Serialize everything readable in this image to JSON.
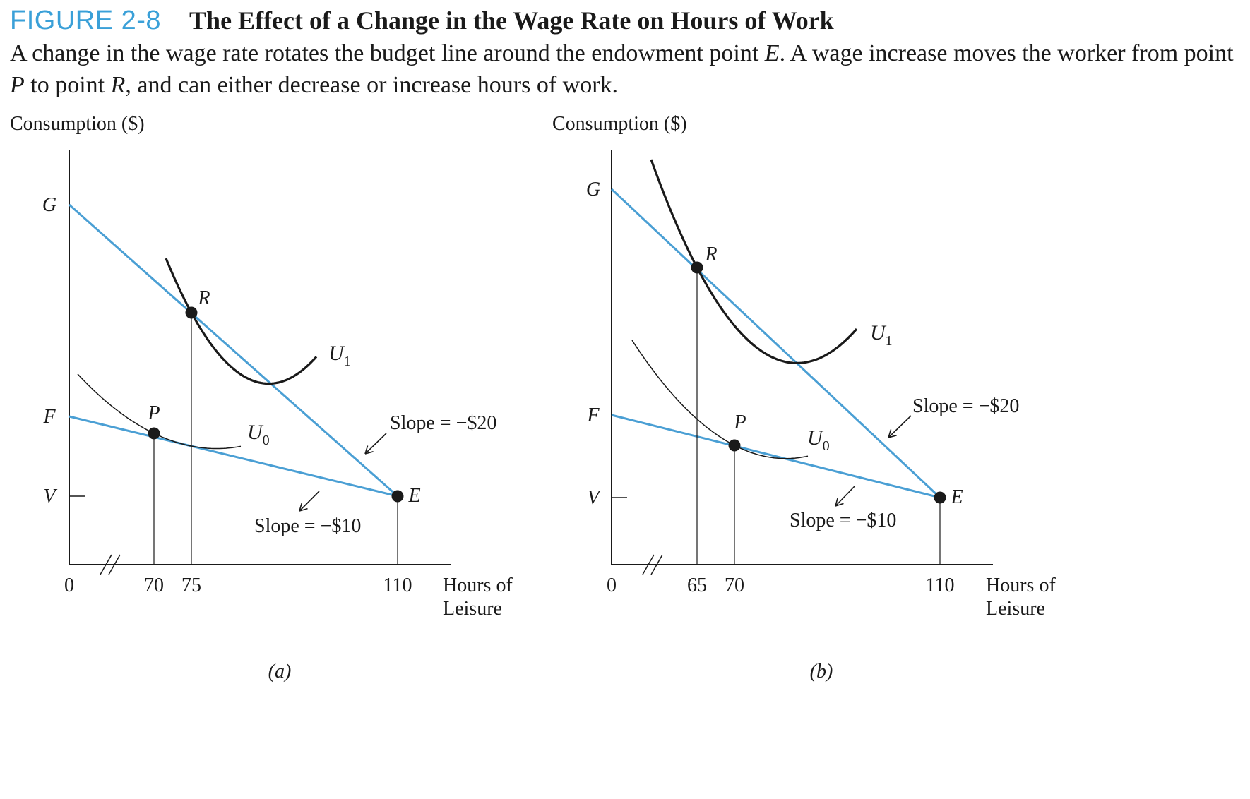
{
  "figure": {
    "label": "FIGURE 2-8",
    "title": "The Effect of a Change in the Wage Rate on Hours of Work",
    "caption": [
      {
        "t": "A change in the wage rate rotates the budget line around the endowment point "
      },
      {
        "t": "E",
        "i": true
      },
      {
        "t": ". A wage increase moves the worker from point "
      },
      {
        "t": "P",
        "i": true
      },
      {
        "t": " to point "
      },
      {
        "t": "R",
        "i": true
      },
      {
        "t": ", and can either decrease or increase hours of work."
      }
    ]
  },
  "colors": {
    "budget_line": "#4a9fd4",
    "curve": "#1a1a1a",
    "figure_label": "#3aa0d8"
  },
  "chart_data": [
    {
      "type": "line",
      "panel_label": "(a)",
      "ylabel": "Consumption ($)",
      "xlabel": [
        "Hours of",
        "Leisure"
      ],
      "x_ticks": [
        "0",
        "70",
        "75",
        "110"
      ],
      "y_labels": [
        "G",
        "F",
        "V"
      ],
      "axis_break": true,
      "series": [
        {
          "kind": "budget",
          "points": [
            {
              "x": 0,
              "y": "F"
            },
            {
              "x": 110,
              "y": "V"
            }
          ]
        },
        {
          "kind": "budget",
          "points": [
            {
              "x": 0,
              "y": "G"
            },
            {
              "x": 110,
              "y": "V"
            }
          ]
        },
        {
          "kind": "indifference",
          "name": "U0"
        },
        {
          "kind": "indifference",
          "name": "U1"
        }
      ],
      "points": [
        {
          "label": "P",
          "x": 70
        },
        {
          "label": "R",
          "x": 75
        },
        {
          "label": "E",
          "x": 110
        }
      ],
      "annotations": [
        "Slope = −$20",
        "Slope = −$10"
      ]
    },
    {
      "type": "line",
      "panel_label": "(b)",
      "ylabel": "Consumption ($)",
      "xlabel": [
        "Hours of",
        "Leisure"
      ],
      "x_ticks": [
        "0",
        "65",
        "70",
        "110"
      ],
      "y_labels": [
        "G",
        "F",
        "V"
      ],
      "axis_break": true,
      "series": [
        {
          "kind": "budget",
          "points": [
            {
              "x": 0,
              "y": "F"
            },
            {
              "x": 110,
              "y": "V"
            }
          ]
        },
        {
          "kind": "budget",
          "points": [
            {
              "x": 0,
              "y": "G"
            },
            {
              "x": 110,
              "y": "V"
            }
          ]
        },
        {
          "kind": "indifference",
          "name": "U0"
        },
        {
          "kind": "indifference",
          "name": "U1"
        }
      ],
      "points": [
        {
          "label": "R",
          "x": 65
        },
        {
          "label": "P",
          "x": 70
        },
        {
          "label": "E",
          "x": 110
        }
      ],
      "annotations": [
        "Slope = −$20",
        "Slope = −$10"
      ]
    }
  ]
}
